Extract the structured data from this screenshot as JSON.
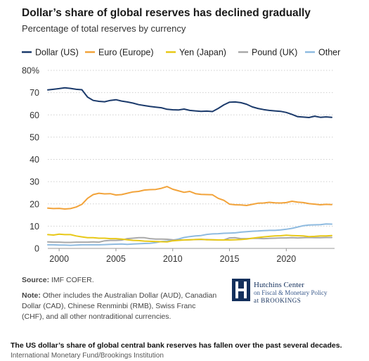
{
  "header": {
    "title": "Dollar’s share of global reserves has declined gradually",
    "subtitle": "Percentage of total reserves by currency"
  },
  "footer": {
    "source_label": "Source:",
    "source_text": "IMF COFER.",
    "note_label": "Note:",
    "note_text": "Other includes the Australian Dollar (AUD), Canadian Dollar (CAD), Chinese Renminbi (RMB), Swiss Franc (CHF), and all other nontraditional currencies."
  },
  "logo": {
    "line1": "Hutchins Center",
    "line2": "on Fiscal & Monetary Policy",
    "line3": "at BROOKINGS"
  },
  "caption": "The US dollar’s share of global central bank reserves has fallen over the past several decades.",
  "credit": "International Monetary Fund/Brookings Institution",
  "chart_data": {
    "type": "line",
    "ylim": [
      0,
      80
    ],
    "xlim": [
      1999,
      2024.25
    ],
    "y_ticks": [
      "0",
      "10",
      "20",
      "30",
      "40",
      "50",
      "60",
      "70",
      "80%"
    ],
    "y_tick_values": [
      0,
      10,
      20,
      30,
      40,
      50,
      60,
      70,
      80
    ],
    "x_ticks": [
      "2000",
      "2005",
      "2010",
      "2015",
      "2020"
    ],
    "x_tick_values": [
      2000,
      2005,
      2010,
      2015,
      2020
    ],
    "grid": "horizontal-dotted",
    "legend": "top",
    "series": [
      {
        "name": "Dollar (US)",
        "color": "#1b3a6b",
        "x": [
          1999,
          1999.5,
          2000,
          2000.5,
          2001,
          2001.5,
          2002,
          2002.5,
          2003,
          2003.5,
          2004,
          2004.5,
          2005,
          2005.5,
          2006,
          2006.5,
          2007,
          2007.5,
          2008,
          2008.5,
          2009,
          2009.5,
          2010,
          2010.5,
          2011,
          2011.5,
          2012,
          2012.5,
          2013,
          2013.5,
          2014,
          2014.5,
          2015,
          2015.5,
          2016,
          2016.5,
          2017,
          2017.5,
          2018,
          2018.5,
          2019,
          2019.5,
          2020,
          2020.5,
          2021,
          2021.5,
          2022,
          2022.5,
          2023,
          2023.5,
          2024
        ],
        "y": [
          71.2,
          71.5,
          71.8,
          72.2,
          71.9,
          71.5,
          71.3,
          68.0,
          66.5,
          66.1,
          65.9,
          66.5,
          66.8,
          66.2,
          65.8,
          65.3,
          64.6,
          64.2,
          63.8,
          63.5,
          63.2,
          62.5,
          62.3,
          62.2,
          62.6,
          62.0,
          61.8,
          61.6,
          61.7,
          61.5,
          62.9,
          64.5,
          65.7,
          65.8,
          65.5,
          64.8,
          63.6,
          62.9,
          62.4,
          62.0,
          61.8,
          61.6,
          61.1,
          60.2,
          59.2,
          59.0,
          58.8,
          59.4,
          58.9,
          59.1,
          58.9
        ]
      },
      {
        "name": "Euro (Europe)",
        "color": "#f2a33a",
        "x": [
          1999,
          1999.5,
          2000,
          2000.5,
          2001,
          2001.5,
          2002,
          2002.5,
          2003,
          2003.5,
          2004,
          2004.5,
          2005,
          2005.5,
          2006,
          2006.5,
          2007,
          2007.5,
          2008,
          2008.5,
          2009,
          2009.5,
          2010,
          2010.5,
          2011,
          2011.5,
          2012,
          2012.5,
          2013,
          2013.5,
          2014,
          2014.5,
          2015,
          2015.5,
          2016,
          2016.5,
          2017,
          2017.5,
          2018,
          2018.5,
          2019,
          2019.5,
          2020,
          2020.5,
          2021,
          2021.5,
          2022,
          2022.5,
          2023,
          2023.5,
          2024
        ],
        "y": [
          18.1,
          17.9,
          18.0,
          17.7,
          17.9,
          18.6,
          19.8,
          22.5,
          24.2,
          24.8,
          24.5,
          24.6,
          24.0,
          24.2,
          24.8,
          25.4,
          25.6,
          26.2,
          26.4,
          26.5,
          27.0,
          27.8,
          26.6,
          25.9,
          25.2,
          25.6,
          24.6,
          24.3,
          24.2,
          24.1,
          22.5,
          21.6,
          19.9,
          19.6,
          19.5,
          19.3,
          19.8,
          20.3,
          20.4,
          20.7,
          20.5,
          20.4,
          20.6,
          21.2,
          20.8,
          20.6,
          20.1,
          19.9,
          19.6,
          19.8,
          19.7
        ]
      },
      {
        "name": "Yen (Japan)",
        "color": "#e8c817",
        "x": [
          1999,
          1999.5,
          2000,
          2000.5,
          2001,
          2001.5,
          2002,
          2002.5,
          2003,
          2003.5,
          2004,
          2004.5,
          2005,
          2005.5,
          2006,
          2006.5,
          2007,
          2007.5,
          2008,
          2008.5,
          2009,
          2009.5,
          2010,
          2010.5,
          2011,
          2011.5,
          2012,
          2012.5,
          2013,
          2013.5,
          2014,
          2014.5,
          2015,
          2015.5,
          2016,
          2016.5,
          2017,
          2017.5,
          2018,
          2018.5,
          2019,
          2019.5,
          2020,
          2020.5,
          2021,
          2021.5,
          2022,
          2022.5,
          2023,
          2023.5,
          2024
        ],
        "y": [
          6.2,
          6.0,
          6.4,
          6.2,
          6.2,
          5.6,
          5.2,
          4.8,
          4.8,
          4.6,
          4.6,
          4.4,
          4.4,
          4.2,
          3.9,
          3.6,
          3.5,
          3.3,
          3.2,
          3.1,
          3.0,
          2.9,
          3.4,
          3.6,
          3.8,
          3.9,
          4.0,
          4.1,
          3.9,
          3.9,
          3.8,
          3.8,
          3.8,
          3.9,
          4.0,
          4.2,
          4.6,
          4.9,
          5.2,
          5.4,
          5.6,
          5.7,
          5.9,
          5.8,
          5.7,
          5.6,
          5.3,
          5.4,
          5.6,
          5.6,
          5.8
        ]
      },
      {
        "name": "Pound (UK)",
        "color": "#a9a9a9",
        "x": [
          1999,
          1999.5,
          2000,
          2000.5,
          2001,
          2001.5,
          2002,
          2002.5,
          2003,
          2003.5,
          2004,
          2004.5,
          2005,
          2005.5,
          2006,
          2006.5,
          2007,
          2007.5,
          2008,
          2008.5,
          2009,
          2009.5,
          2010,
          2010.5,
          2011,
          2011.5,
          2012,
          2012.5,
          2013,
          2013.5,
          2014,
          2014.5,
          2015,
          2015.5,
          2016,
          2016.5,
          2017,
          2017.5,
          2018,
          2018.5,
          2019,
          2019.5,
          2020,
          2020.5,
          2021,
          2021.5,
          2022,
          2022.5,
          2023,
          2023.5,
          2024
        ],
        "y": [
          2.9,
          2.8,
          2.8,
          2.7,
          2.7,
          2.8,
          2.8,
          2.8,
          2.9,
          2.8,
          3.4,
          3.6,
          3.6,
          3.7,
          4.4,
          4.6,
          4.8,
          4.8,
          4.4,
          4.2,
          4.2,
          4.1,
          3.9,
          3.8,
          3.8,
          3.9,
          4.0,
          4.0,
          4.0,
          3.9,
          3.8,
          3.8,
          4.7,
          4.8,
          4.4,
          4.4,
          4.5,
          4.5,
          4.4,
          4.5,
          4.6,
          4.7,
          4.7,
          4.8,
          4.7,
          4.8,
          4.9,
          4.8,
          4.8,
          4.9,
          4.9
        ]
      },
      {
        "name": "Other",
        "color": "#8fbbe0",
        "x": [
          1999,
          1999.5,
          2000,
          2000.5,
          2001,
          2001.5,
          2002,
          2002.5,
          2003,
          2003.5,
          2004,
          2004.5,
          2005,
          2005.5,
          2006,
          2006.5,
          2007,
          2007.5,
          2008,
          2008.5,
          2009,
          2009.5,
          2010,
          2010.5,
          2011,
          2011.5,
          2012,
          2012.5,
          2013,
          2013.5,
          2014,
          2014.5,
          2015,
          2015.5,
          2016,
          2016.5,
          2017,
          2017.5,
          2018,
          2018.5,
          2019,
          2019.5,
          2020,
          2020.5,
          2021,
          2021.5,
          2022,
          2022.5,
          2023,
          2023.5,
          2024
        ],
        "y": [
          1.6,
          1.6,
          1.5,
          1.5,
          1.4,
          1.5,
          1.6,
          1.6,
          1.6,
          1.6,
          1.7,
          1.8,
          1.9,
          2.0,
          1.8,
          2.0,
          2.1,
          2.2,
          2.3,
          2.6,
          3.1,
          3.3,
          3.7,
          4.2,
          4.9,
          5.3,
          5.6,
          5.8,
          6.3,
          6.5,
          6.6,
          6.8,
          6.9,
          7.0,
          7.3,
          7.5,
          7.7,
          7.8,
          8.0,
          8.1,
          8.1,
          8.3,
          8.6,
          9.0,
          9.6,
          10.2,
          10.5,
          10.6,
          10.7,
          11.0,
          10.9
        ]
      }
    ]
  }
}
